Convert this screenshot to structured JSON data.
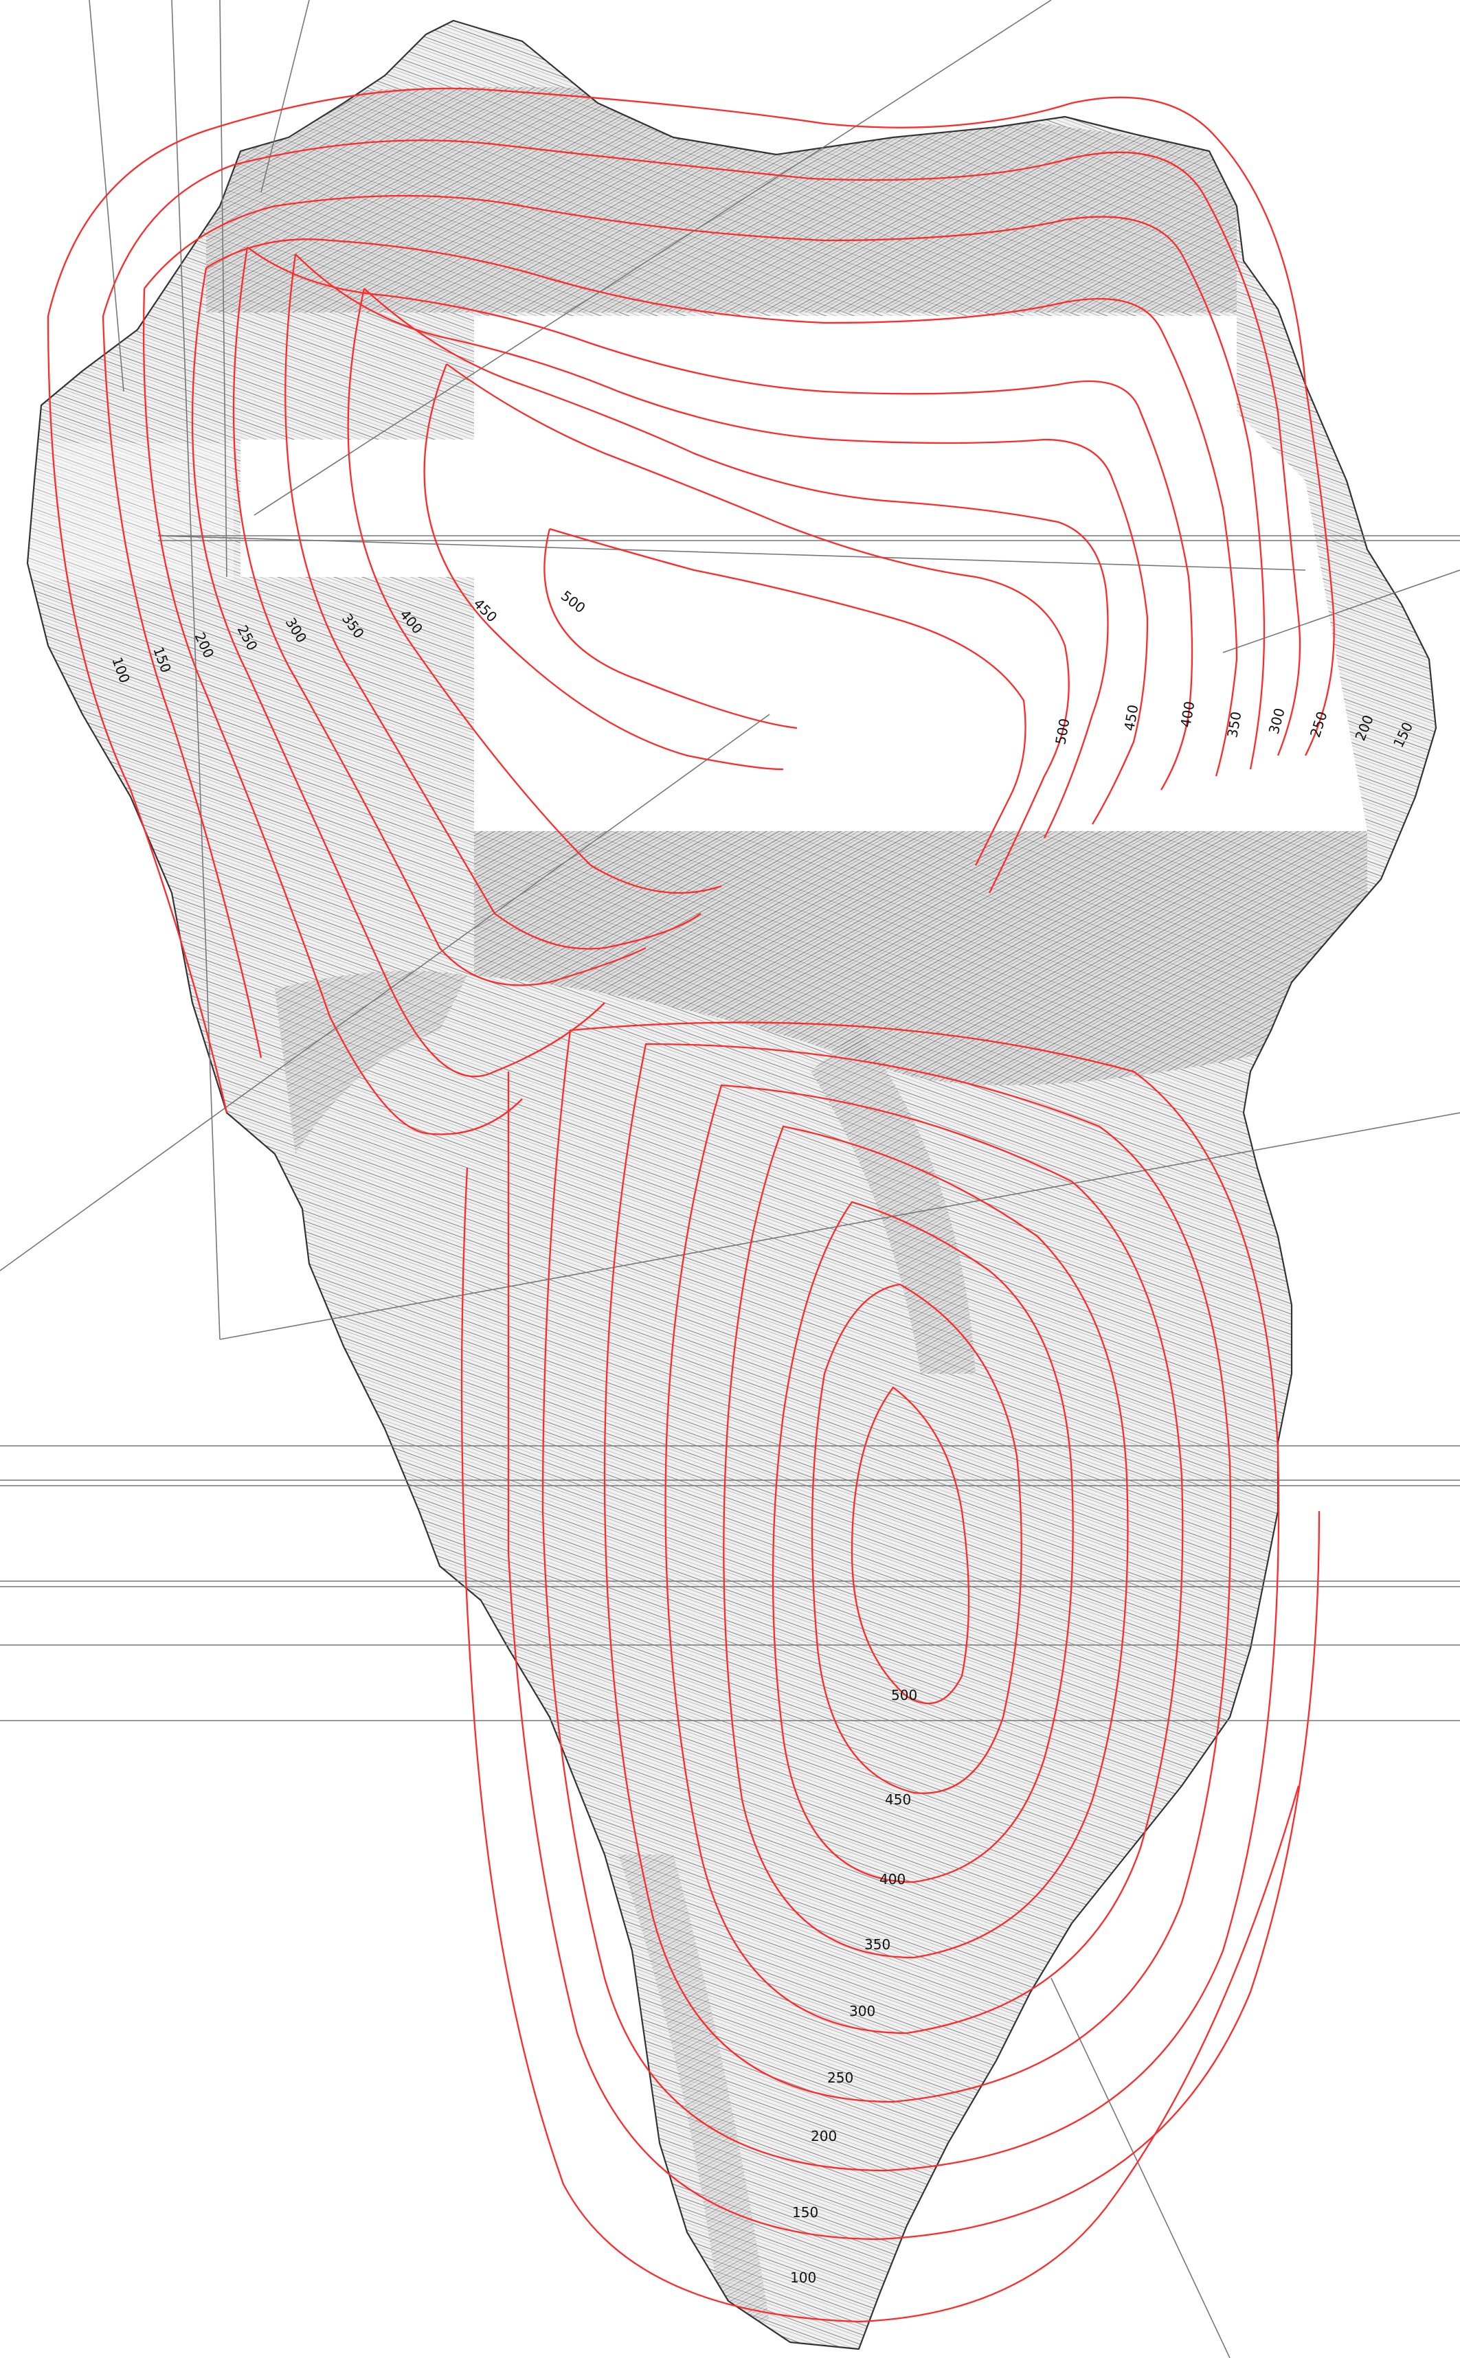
{
  "colors": {
    "background": "#ffffff",
    "isoline": "#ff2a2a",
    "topo_contour": "#808080",
    "coastline": "#333333",
    "grid_line": "#777777"
  },
  "north_lobe_labels": {
    "left": [
      "100",
      "150",
      "200",
      "250",
      "300",
      "350",
      "400",
      "450",
      "500"
    ],
    "right": [
      "500",
      "450",
      "400",
      "350",
      "300",
      "250",
      "200",
      "150"
    ]
  },
  "south_lobe_labels": [
    "500",
    "450",
    "400",
    "350",
    "300",
    "250",
    "200",
    "150",
    "100"
  ]
}
